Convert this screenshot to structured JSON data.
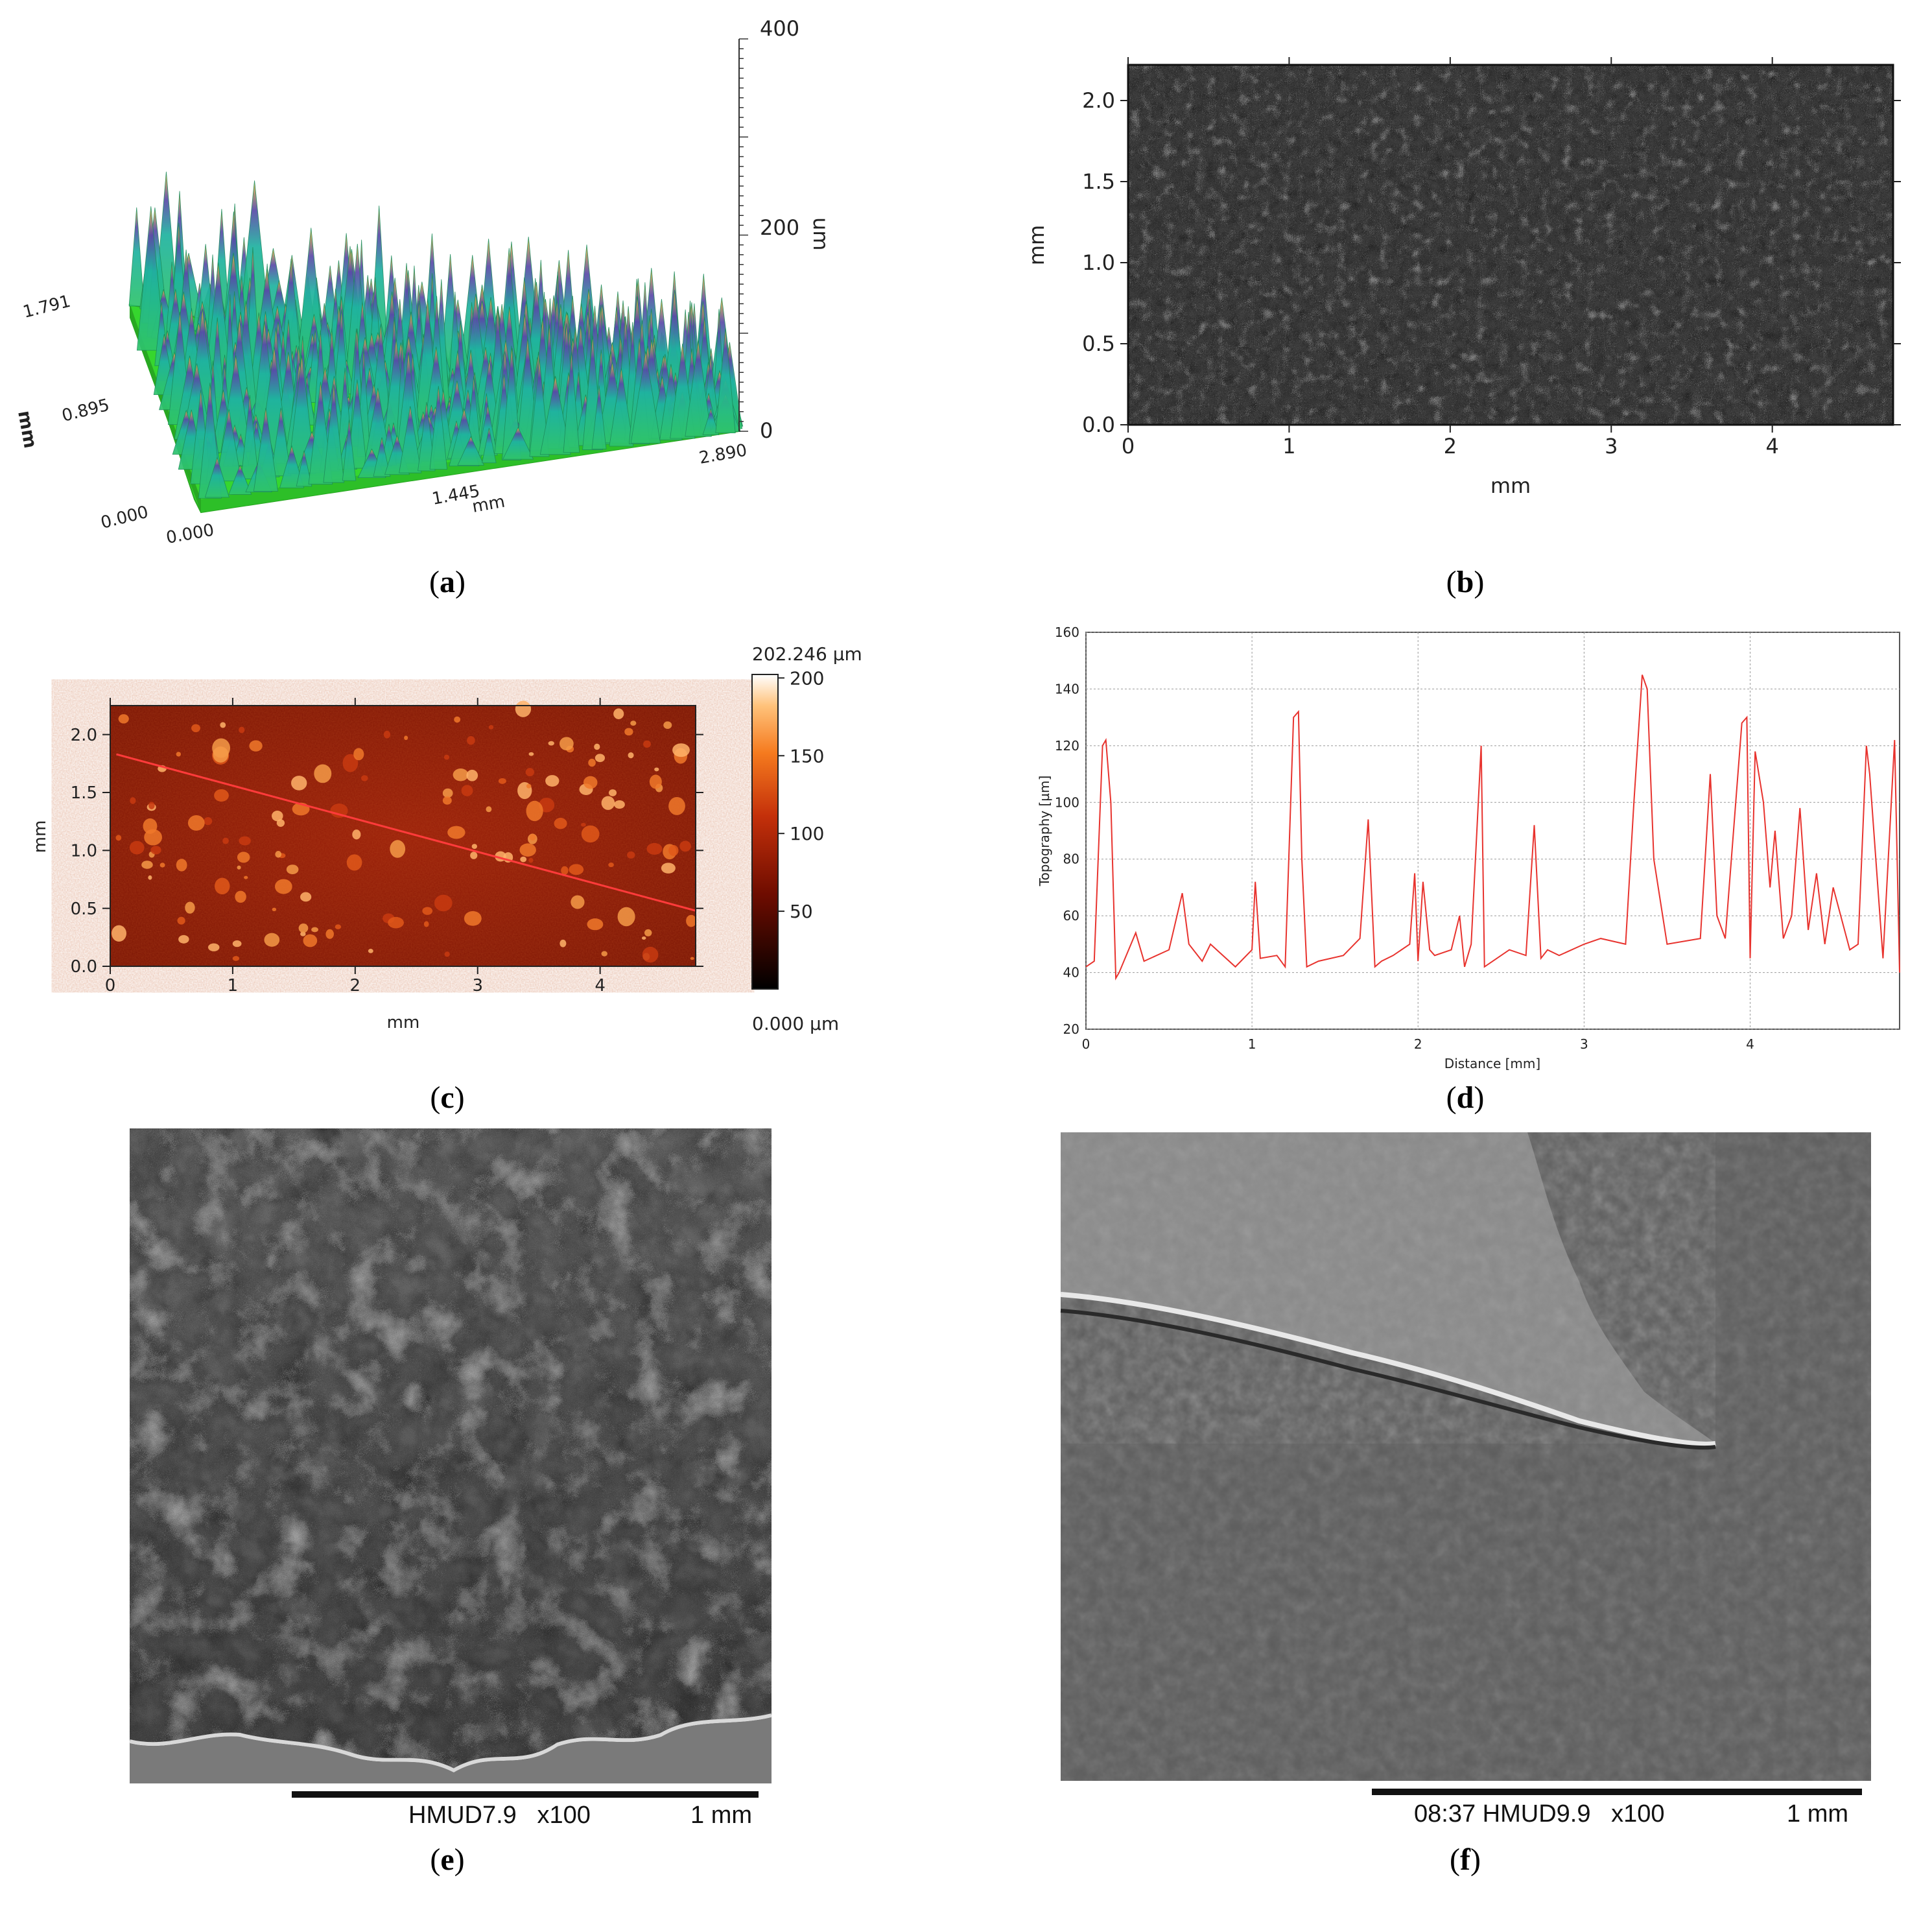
{
  "captions": {
    "a": "a",
    "b": "b",
    "c": "c",
    "d": "d",
    "e": "e",
    "f": "f"
  },
  "panel_a": {
    "z_ticks": [
      "400",
      "200",
      "0"
    ],
    "z_unit": "um",
    "y_ticks": [
      "1.791",
      "0.895",
      "0.000"
    ],
    "y_unit": "mm",
    "x_ticks": [
      "0.000",
      "1.445",
      "2.890"
    ],
    "x_unit": "mm",
    "colors": {
      "base": "#36d62e",
      "peak_teal": "#1fb3a0",
      "peak_yellow": "#e8c23a",
      "peak_blue": "#2a2f8c"
    }
  },
  "panel_b": {
    "x_ticks": [
      "0",
      "1",
      "2",
      "3",
      "4"
    ],
    "y_ticks": [
      "0.0",
      "0.5",
      "1.0",
      "1.5",
      "2.0"
    ],
    "xlabel": "mm",
    "ylabel": "mm"
  },
  "panel_c": {
    "x_ticks": [
      "0",
      "1",
      "2",
      "3",
      "4"
    ],
    "y_ticks": [
      "0.0",
      "0.5",
      "1.0",
      "1.5",
      "2.0"
    ],
    "xlabel": "mm",
    "ylabel": "mm",
    "colorbar_max_label": "202.246 µm",
    "colorbar_min_label": "0.000 µm",
    "colorbar_ticks": [
      "200",
      "150",
      "100",
      "50"
    ],
    "profile_line": {
      "x_start": 0.05,
      "y_start": 1.83,
      "x_end": 4.78,
      "y_end": 0.48
    }
  },
  "chart_data": {
    "type": "line",
    "title": "",
    "xlabel": "Distance [mm]",
    "ylabel": "Topography [µm]",
    "xlim": [
      0,
      4.9
    ],
    "ylim": [
      20,
      160
    ],
    "x_ticks": [
      "0",
      "1",
      "2",
      "3",
      "4"
    ],
    "y_ticks": [
      "20",
      "40",
      "60",
      "80",
      "100",
      "120",
      "140",
      "160"
    ],
    "grid": true,
    "series": [
      {
        "color": "#e8332e",
        "x": [
          0,
          0.05,
          0.1,
          0.12,
          0.15,
          0.18,
          0.2,
          0.3,
          0.35,
          0.5,
          0.58,
          0.62,
          0.7,
          0.75,
          0.9,
          1.0,
          1.02,
          1.05,
          1.15,
          1.2,
          1.25,
          1.28,
          1.3,
          1.33,
          1.4,
          1.55,
          1.65,
          1.7,
          1.74,
          1.78,
          1.85,
          1.95,
          1.98,
          2.0,
          2.03,
          2.07,
          2.1,
          2.2,
          2.25,
          2.28,
          2.32,
          2.38,
          2.4,
          2.45,
          2.55,
          2.65,
          2.7,
          2.74,
          2.78,
          2.85,
          3.0,
          3.1,
          3.25,
          3.3,
          3.35,
          3.38,
          3.42,
          3.5,
          3.7,
          3.76,
          3.8,
          3.85,
          3.95,
          3.98,
          4.0,
          4.03,
          4.08,
          4.12,
          4.15,
          4.2,
          4.25,
          4.3,
          4.35,
          4.4,
          4.45,
          4.5,
          4.6,
          4.65,
          4.7,
          4.72,
          4.8,
          4.87,
          4.9
        ],
        "values": [
          42,
          44,
          120,
          122,
          100,
          38,
          40,
          54,
          44,
          48,
          68,
          50,
          44,
          50,
          42,
          48,
          72,
          45,
          46,
          42,
          130,
          132,
          80,
          42,
          44,
          46,
          52,
          94,
          42,
          44,
          46,
          50,
          75,
          44,
          72,
          48,
          46,
          48,
          60,
          42,
          50,
          120,
          42,
          44,
          48,
          46,
          92,
          45,
          48,
          46,
          50,
          52,
          50,
          100,
          145,
          140,
          80,
          50,
          52,
          110,
          60,
          52,
          128,
          130,
          45,
          118,
          100,
          70,
          90,
          52,
          60,
          98,
          55,
          75,
          50,
          70,
          48,
          50,
          120,
          110,
          45,
          122,
          40
        ]
      }
    ]
  },
  "panel_e": {
    "scalebar_text": "HMUD7.9   x100",
    "scalebar_unit": "1 mm"
  },
  "panel_f": {
    "scalebar_text": "08:37 HMUD9.9   x100",
    "scalebar_unit": "1 mm"
  }
}
